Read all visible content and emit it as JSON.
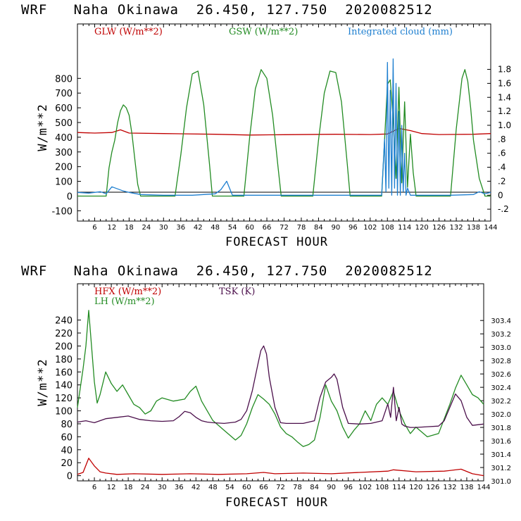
{
  "chart_data": [
    {
      "type": "line",
      "title": "WRF   Naha Okinawa  26.450, 127.750  2020082512",
      "xlabel": "FORECAST HOUR",
      "ylabel": "W/m**2",
      "xlim": [
        0,
        144
      ],
      "ylim": [
        -170,
        1170
      ],
      "yticks": [
        -100,
        0,
        100,
        200,
        300,
        400,
        500,
        600,
        700,
        800
      ],
      "ylim_right": [
        -0.37,
        2.45
      ],
      "yticks_right": [
        -0.2,
        0,
        0.2,
        0.4,
        0.6,
        0.8,
        1.0,
        1.2,
        1.4,
        1.6,
        1.8
      ],
      "ytick_labels_right": [
        "-.2",
        "0",
        ".2",
        ".4",
        ".6",
        ".8",
        "1.0",
        "1.2",
        "1.4",
        "1.6",
        "1.8"
      ],
      "xticks": [
        6,
        12,
        18,
        24,
        30,
        36,
        42,
        48,
        54,
        60,
        66,
        72,
        78,
        84,
        90,
        96,
        102,
        108,
        114,
        120,
        126,
        132,
        138,
        144
      ],
      "grid": false,
      "legend_position": "top",
      "series": [
        {
          "name": "GLW (W/m**2)",
          "axis": "left",
          "color": "#c00000",
          "x": [
            0,
            6,
            12,
            15,
            18,
            30,
            48,
            60,
            72,
            90,
            102,
            108,
            112,
            116,
            120,
            126,
            138,
            144
          ],
          "y": [
            432,
            428,
            432,
            450,
            428,
            425,
            420,
            415,
            417,
            420,
            418,
            422,
            460,
            445,
            425,
            418,
            420,
            425
          ]
        },
        {
          "name": "GSW (W/m**2)",
          "axis": "left",
          "color": "#228b22",
          "x": [
            0,
            10,
            11,
            12,
            13,
            14,
            15,
            16,
            17,
            18,
            19,
            20,
            21,
            22,
            34,
            36,
            38,
            40,
            42,
            44,
            46,
            47,
            58,
            60,
            62,
            64,
            66,
            68,
            70,
            71,
            82,
            84,
            86,
            88,
            90,
            92,
            94,
            95,
            106,
            107,
            108,
            109,
            110,
            111,
            112,
            113,
            114,
            115,
            116,
            117,
            118,
            130,
            132,
            134,
            135,
            136,
            137,
            138,
            140,
            142,
            144
          ],
          "y": [
            0,
            0,
            190,
            300,
            380,
            500,
            580,
            620,
            600,
            550,
            420,
            250,
            80,
            0,
            0,
            280,
            600,
            830,
            850,
            620,
            220,
            0,
            0,
            400,
            730,
            860,
            800,
            550,
            180,
            0,
            0,
            380,
            700,
            850,
            840,
            640,
            220,
            0,
            0,
            380,
            760,
            790,
            520,
            120,
            740,
            90,
            640,
            60,
            420,
            160,
            0,
            0,
            460,
            800,
            860,
            780,
            600,
            380,
            120,
            0,
            0
          ]
        },
        {
          "name": "Integrated cloud (mm)",
          "axis": "right",
          "color": "#1e7fd0",
          "x": [
            0,
            4,
            8,
            10,
            12,
            14,
            16,
            18,
            22,
            30,
            40,
            48,
            50,
            52,
            53,
            54,
            60,
            80,
            100,
            106,
            107,
            107.5,
            108,
            108.5,
            109,
            109.5,
            110,
            110.5,
            111,
            111.5,
            112,
            112.5,
            113,
            113.5,
            114,
            114.5,
            115,
            116,
            130,
            138,
            140,
            142,
            144
          ],
          "y": [
            0.04,
            0.03,
            0.05,
            0.02,
            0.12,
            0.09,
            0.06,
            0.04,
            0.01,
            0.0,
            0.0,
            0.02,
            0.08,
            0.2,
            0.1,
            0.0,
            0.0,
            0.0,
            0.0,
            0.0,
            0.8,
            0.05,
            1.9,
            0.1,
            1.5,
            0.0,
            1.95,
            0.1,
            1.6,
            0.0,
            1.2,
            0.0,
            1.0,
            0.05,
            0.6,
            0.0,
            0.1,
            0.0,
            0.0,
            0.01,
            0.05,
            0.02,
            0.04
          ]
        }
      ]
    },
    {
      "type": "line",
      "title": "WRF   Naha Okinawa  26.450, 127.750  2020082512",
      "xlabel": "FORECAST HOUR",
      "ylabel": "W/m**2",
      "xlim": [
        0,
        144
      ],
      "ylim": [
        -8,
        296
      ],
      "yticks": [
        0,
        20,
        40,
        60,
        80,
        100,
        120,
        140,
        160,
        180,
        200,
        220,
        240
      ],
      "ylim_right": [
        301.0,
        303.95
      ],
      "yticks_right": [
        301.0,
        301.2,
        301.4,
        301.6,
        301.8,
        302.0,
        302.2,
        302.4,
        302.6,
        302.8,
        303.0,
        303.2,
        303.4
      ],
      "ytick_labels_right": [
        "301.0",
        "301.2",
        "301.4",
        "301.6",
        "301.8",
        "302.0",
        "302.2",
        "302.4",
        "302.6",
        "302.8",
        "303.0",
        "303.2",
        "303.4"
      ],
      "xticks": [
        6,
        12,
        18,
        24,
        30,
        36,
        42,
        48,
        54,
        60,
        66,
        72,
        78,
        84,
        90,
        96,
        102,
        108,
        114,
        120,
        126,
        132,
        138,
        144
      ],
      "grid": false,
      "legend_position": "top-left",
      "series": [
        {
          "name": "HFX (W/m**2)",
          "axis": "left",
          "color": "#c00000",
          "x": [
            0,
            2,
            4,
            6,
            8,
            10,
            14,
            20,
            30,
            40,
            50,
            60,
            66,
            70,
            80,
            90,
            100,
            110,
            112,
            120,
            130,
            136,
            140,
            144
          ],
          "y": [
            2,
            5,
            27,
            15,
            6,
            4,
            2,
            3,
            2,
            3,
            2,
            3,
            5,
            3,
            4,
            3,
            5,
            7,
            9,
            6,
            7,
            10,
            3,
            0
          ]
        },
        {
          "name": "LH (W/m**2)",
          "axis": "left",
          "color": "#228b22",
          "x": [
            0,
            2,
            3,
            4,
            5,
            6,
            7,
            8,
            10,
            12,
            14,
            16,
            18,
            20,
            22,
            24,
            26,
            28,
            30,
            34,
            38,
            40,
            42,
            44,
            48,
            52,
            56,
            58,
            60,
            62,
            64,
            66,
            68,
            70,
            72,
            74,
            76,
            78,
            80,
            82,
            84,
            86,
            88,
            90,
            92,
            94,
            96,
            98,
            100,
            102,
            104,
            106,
            108,
            110,
            112,
            114,
            116,
            118,
            120,
            124,
            128,
            132,
            134,
            136,
            138,
            140,
            142,
            144
          ],
          "y": [
            105,
            165,
            200,
            255,
            200,
            145,
            112,
            125,
            160,
            142,
            130,
            140,
            125,
            110,
            105,
            95,
            100,
            115,
            120,
            115,
            118,
            130,
            138,
            115,
            85,
            70,
            55,
            62,
            80,
            105,
            125,
            118,
            110,
            95,
            75,
            65,
            60,
            52,
            45,
            48,
            55,
            90,
            140,
            115,
            100,
            75,
            58,
            70,
            80,
            100,
            85,
            110,
            120,
            110,
            130,
            100,
            80,
            65,
            75,
            60,
            65,
            110,
            135,
            155,
            140,
            125,
            120,
            110
          ]
        },
        {
          "name": "TSK (K)",
          "axis": "right",
          "color": "#4b0f4b",
          "x": [
            0,
            3,
            6,
            10,
            14,
            18,
            22,
            26,
            30,
            34,
            36,
            38,
            40,
            42,
            44,
            46,
            48,
            52,
            56,
            58,
            60,
            62,
            64,
            65,
            66,
            67,
            68,
            70,
            72,
            74,
            80,
            84,
            86,
            88,
            90,
            91,
            92,
            94,
            96,
            100,
            104,
            108,
            110,
            111,
            112,
            113,
            114,
            115,
            116,
            118,
            120,
            124,
            128,
            130,
            132,
            134,
            136,
            138,
            140,
            144
          ],
          "y": [
            301.88,
            301.9,
            301.87,
            301.93,
            301.95,
            301.97,
            301.92,
            301.9,
            301.89,
            301.9,
            301.96,
            302.04,
            302.02,
            301.95,
            301.9,
            301.88,
            301.87,
            301.86,
            301.88,
            301.92,
            302.05,
            302.35,
            302.75,
            302.95,
            303.02,
            302.9,
            302.55,
            302.1,
            301.87,
            301.86,
            301.86,
            301.9,
            302.25,
            302.48,
            302.55,
            302.6,
            302.52,
            302.1,
            301.86,
            301.85,
            301.86,
            301.9,
            302.15,
            301.95,
            302.4,
            301.9,
            302.1,
            301.85,
            301.82,
            301.8,
            301.8,
            301.81,
            301.82,
            301.9,
            302.1,
            302.3,
            302.2,
            301.95,
            301.83,
            301.85
          ]
        }
      ]
    }
  ]
}
